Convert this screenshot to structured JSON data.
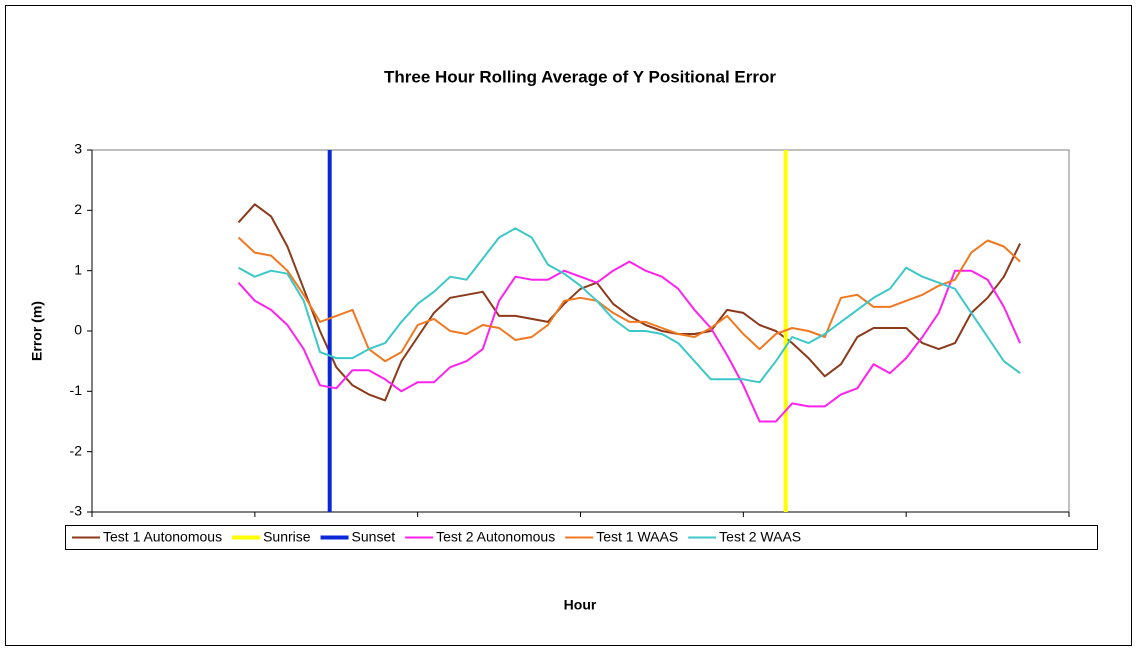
{
  "chart_data": {
    "type": "line",
    "title": "Three Hour Rolling Average of Y Positional Error",
    "x_label": "Hour",
    "y_label": "Error (m)",
    "xlim": [
      10,
      40
    ],
    "xticks": [
      10,
      15,
      20,
      25,
      30,
      35,
      40
    ],
    "ylim": [
      -3,
      3
    ],
    "yticks": [
      -3,
      -2,
      -1,
      0,
      1,
      2,
      3
    ],
    "legend": "bottom",
    "x": [
      14.5,
      15,
      15.5,
      16,
      16.5,
      17,
      17.5,
      18,
      18.5,
      19,
      19.5,
      20,
      20.5,
      21,
      21.5,
      22,
      22.5,
      23,
      23.5,
      24,
      24.5,
      25,
      25.5,
      26,
      26.5,
      27,
      27.5,
      28,
      28.5,
      29,
      29.5,
      30,
      30.5,
      31,
      31.5,
      32,
      32.5,
      33,
      33.5,
      34,
      34.5,
      35,
      35.5,
      36,
      36.5,
      37,
      37.5,
      38,
      38.5
    ],
    "series": [
      {
        "name": "Test 1 Autonomous",
        "color": "#8b3a1a",
        "values": [
          1.8,
          2.1,
          1.9,
          1.4,
          0.7,
          0.0,
          -0.6,
          -0.9,
          -1.05,
          -1.15,
          -0.5,
          -0.1,
          0.3,
          0.55,
          0.6,
          0.65,
          0.25,
          0.25,
          0.2,
          0.15,
          0.45,
          0.7,
          0.8,
          0.45,
          0.25,
          0.1,
          0.0,
          -0.05,
          -0.05,
          0.0,
          0.35,
          0.3,
          0.1,
          0.0,
          -0.2,
          -0.45,
          -0.75,
          -0.55,
          -0.1,
          0.05,
          0.05,
          0.05,
          -0.2,
          -0.3,
          -0.2,
          0.3,
          0.55,
          0.9,
          1.45
        ]
      },
      {
        "name": "Sunrise",
        "color": "#ffff00",
        "x": [
          31.3,
          31.3
        ],
        "values": [
          -3,
          3
        ]
      },
      {
        "name": "Sunset",
        "color": "#0a28d8",
        "x": [
          17.3,
          17.3
        ],
        "values": [
          -3,
          3
        ]
      },
      {
        "name": "Test 2 Autonomous",
        "color": "#ff22ee",
        "values": [
          0.8,
          0.5,
          0.35,
          0.1,
          -0.3,
          -0.9,
          -0.95,
          -0.65,
          -0.65,
          -0.8,
          -1.0,
          -0.85,
          -0.85,
          -0.6,
          -0.5,
          -0.3,
          0.5,
          0.9,
          0.85,
          0.85,
          1.0,
          0.9,
          0.8,
          1.0,
          1.15,
          1.0,
          0.9,
          0.7,
          0.35,
          0.05,
          -0.4,
          -0.9,
          -1.5,
          -1.5,
          -1.2,
          -1.25,
          -1.25,
          -1.05,
          -0.95,
          -0.55,
          -0.7,
          -0.45,
          -0.1,
          0.3,
          1.0,
          1.0,
          0.85,
          0.4,
          -0.2
        ]
      },
      {
        "name": "Test 1 WAAS",
        "color": "#f07820",
        "values": [
          1.55,
          1.3,
          1.25,
          1.0,
          0.6,
          0.15,
          0.25,
          0.35,
          -0.3,
          -0.5,
          -0.35,
          0.1,
          0.2,
          0.0,
          -0.05,
          0.1,
          0.05,
          -0.15,
          -0.1,
          0.1,
          0.5,
          0.55,
          0.5,
          0.3,
          0.15,
          0.15,
          0.05,
          -0.05,
          -0.1,
          0.05,
          0.25,
          -0.05,
          -0.3,
          -0.05,
          0.05,
          0.0,
          -0.1,
          0.55,
          0.6,
          0.4,
          0.4,
          0.5,
          0.6,
          0.75,
          0.85,
          1.3,
          1.5,
          1.4,
          1.15
        ]
      },
      {
        "name": "Test 2 WAAS",
        "color": "#3cc8c8",
        "values": [
          1.05,
          0.9,
          1.0,
          0.95,
          0.5,
          -0.35,
          -0.45,
          -0.45,
          -0.3,
          -0.2,
          0.15,
          0.45,
          0.65,
          0.9,
          0.85,
          1.2,
          1.55,
          1.7,
          1.55,
          1.1,
          0.95,
          0.75,
          0.5,
          0.2,
          0.0,
          0.0,
          -0.05,
          -0.2,
          -0.5,
          -0.8,
          -0.8,
          -0.8,
          -0.85,
          -0.5,
          -0.1,
          -0.2,
          -0.05,
          0.15,
          0.35,
          0.55,
          0.7,
          1.05,
          0.9,
          0.8,
          0.7,
          0.3,
          -0.1,
          -0.5,
          -0.7
        ]
      }
    ]
  }
}
